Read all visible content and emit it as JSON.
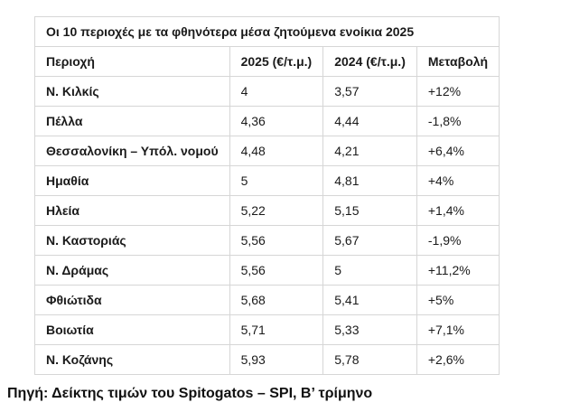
{
  "chart_data": {
    "type": "table",
    "title": "Οι 10 περιοχές με τα φθηνότερα μέσα ζητούμενα ενοίκια 2025",
    "columns": [
      "Περιοχή",
      "2025 (€/τ.μ.)",
      "2024 (€/τ.μ.)",
      "Μεταβολή"
    ],
    "rows": [
      {
        "region": "Ν. Κιλκίς",
        "v2025": "4",
        "v2024": "3,57",
        "change": "+12%"
      },
      {
        "region": "Πέλλα",
        "v2025": "4,36",
        "v2024": "4,44",
        "change": "-1,8%"
      },
      {
        "region": "Θεσσαλονίκη – Υπόλ. νομού",
        "v2025": "4,48",
        "v2024": "4,21",
        "change": "+6,4%"
      },
      {
        "region": "Ημαθία",
        "v2025": "5",
        "v2024": "4,81",
        "change": "+4%"
      },
      {
        "region": "Ηλεία",
        "v2025": "5,22",
        "v2024": "5,15",
        "change": "+1,4%"
      },
      {
        "region": "Ν. Καστοριάς",
        "v2025": "5,56",
        "v2024": "5,67",
        "change": "-1,9%"
      },
      {
        "region": "Ν. Δράμας",
        "v2025": "5,56",
        "v2024": "5",
        "change": "+11,2%"
      },
      {
        "region": "Φθιώτιδα",
        "v2025": "5,68",
        "v2024": "5,41",
        "change": "+5%"
      },
      {
        "region": "Βοιωτία",
        "v2025": "5,71",
        "v2024": "5,33",
        "change": "+7,1%"
      },
      {
        "region": "Ν. Κοζάνης",
        "v2025": "5,93",
        "v2024": "5,78",
        "change": "+2,6%"
      }
    ]
  },
  "footer": {
    "source": "Πηγή: Δείκτης τιμών του Spitogatos – SPI, Β’ τρίμηνο"
  },
  "colors": {
    "border": "#d6d6d6",
    "text": "#1a1a1a",
    "background": "#ffffff"
  }
}
